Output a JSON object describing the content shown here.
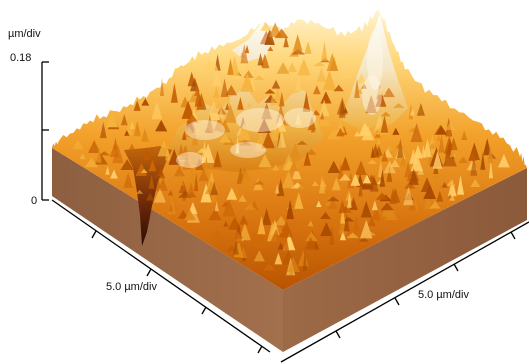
{
  "z_axis": {
    "unit_label": "µm/div",
    "max_label": "0.18",
    "min_label": "0"
  },
  "x_axis": {
    "label": "5.0 µm/div"
  },
  "y_axis": {
    "label": "5.0 µm/div"
  },
  "colors": {
    "base_side": "#9a6a49",
    "base_side_dark": "#7e5236",
    "surface_low": "#b85400",
    "surface_mid": "#ec9a1e",
    "surface_high": "#fff3cf",
    "pit": "#3a1206"
  }
}
